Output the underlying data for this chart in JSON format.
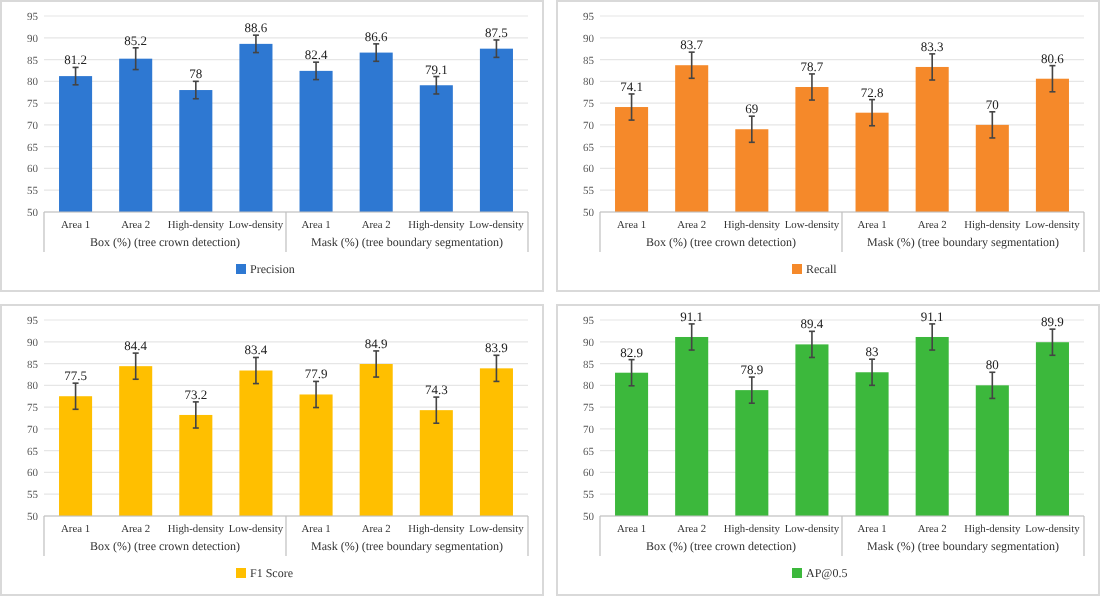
{
  "chart_data": [
    {
      "type": "bar",
      "categories": [
        "Area 1",
        "Area 2",
        "High-density",
        "Low-density",
        "Area 1",
        "Area 2",
        "High-density",
        "Low-density"
      ],
      "series": [
        {
          "name": "Precision",
          "color": "#2e78d2",
          "values": [
            81.2,
            85.2,
            78,
            88.6,
            82.4,
            86.6,
            79.1,
            87.5
          ],
          "errors": [
            2,
            2.5,
            2,
            2,
            2,
            2,
            2,
            2
          ]
        }
      ],
      "ylim": [
        50,
        95
      ],
      "yticks": [
        50,
        55,
        60,
        65,
        70,
        75,
        80,
        85,
        90,
        95
      ],
      "grid": "y",
      "legend": "bottom",
      "data_labels": true,
      "annotations": [
        "Box (%) (tree crown detection)",
        "Mask (%) (tree boundary segmentation)"
      ]
    },
    {
      "type": "bar",
      "categories": [
        "Area 1",
        "Area 2",
        "High-density",
        "Low-density",
        "Area 1",
        "Area 2",
        "High-density",
        "Low-density"
      ],
      "series": [
        {
          "name": "Recall",
          "color": "#f5892a",
          "values": [
            74.1,
            83.7,
            69,
            78.7,
            72.8,
            83.3,
            70,
            80.6
          ],
          "errors": [
            3,
            3,
            3,
            3,
            3,
            3,
            3,
            3
          ]
        }
      ],
      "ylim": [
        50,
        95
      ],
      "yticks": [
        50,
        55,
        60,
        65,
        70,
        75,
        80,
        85,
        90,
        95
      ],
      "grid": "y",
      "legend": "bottom",
      "data_labels": true,
      "annotations": [
        "Box (%) (tree crown detection)",
        "Mask (%) (tree boundary segmentation)"
      ]
    },
    {
      "type": "bar",
      "categories": [
        "Area 1",
        "Area 2",
        "High-density",
        "Low-density",
        "Area 1",
        "Area 2",
        "High-density",
        "Low-density"
      ],
      "series": [
        {
          "name": "F1 Score",
          "color": "#ffbf00",
          "values": [
            77.5,
            84.4,
            73.2,
            83.4,
            77.9,
            84.9,
            74.3,
            83.9
          ],
          "errors": [
            3,
            3,
            3,
            3,
            3,
            3,
            3,
            3
          ]
        }
      ],
      "ylim": [
        50,
        95
      ],
      "yticks": [
        50,
        55,
        60,
        65,
        70,
        75,
        80,
        85,
        90,
        95
      ],
      "grid": "y",
      "legend": "bottom",
      "data_labels": true,
      "annotations": [
        "Box (%) (tree crown detection)",
        "Mask (%) (tree boundary segmentation)"
      ]
    },
    {
      "type": "bar",
      "categories": [
        "Area 1",
        "Area 2",
        "High-density",
        "Low-density",
        "Area 1",
        "Area 2",
        "High-density",
        "Low-density"
      ],
      "series": [
        {
          "name": "AP@0.5",
          "color": "#3cb83c",
          "values": [
            82.9,
            91.1,
            78.9,
            89.4,
            83,
            91.1,
            80,
            89.9
          ],
          "errors": [
            3,
            3,
            3,
            3,
            3,
            3,
            3,
            3
          ]
        }
      ],
      "ylim": [
        50,
        95
      ],
      "yticks": [
        50,
        55,
        60,
        65,
        70,
        75,
        80,
        85,
        90,
        95
      ],
      "grid": "y",
      "legend": "bottom",
      "data_labels": true,
      "annotations": [
        "Box (%) (tree crown detection)",
        "Mask (%) (tree boundary segmentation)"
      ]
    }
  ]
}
